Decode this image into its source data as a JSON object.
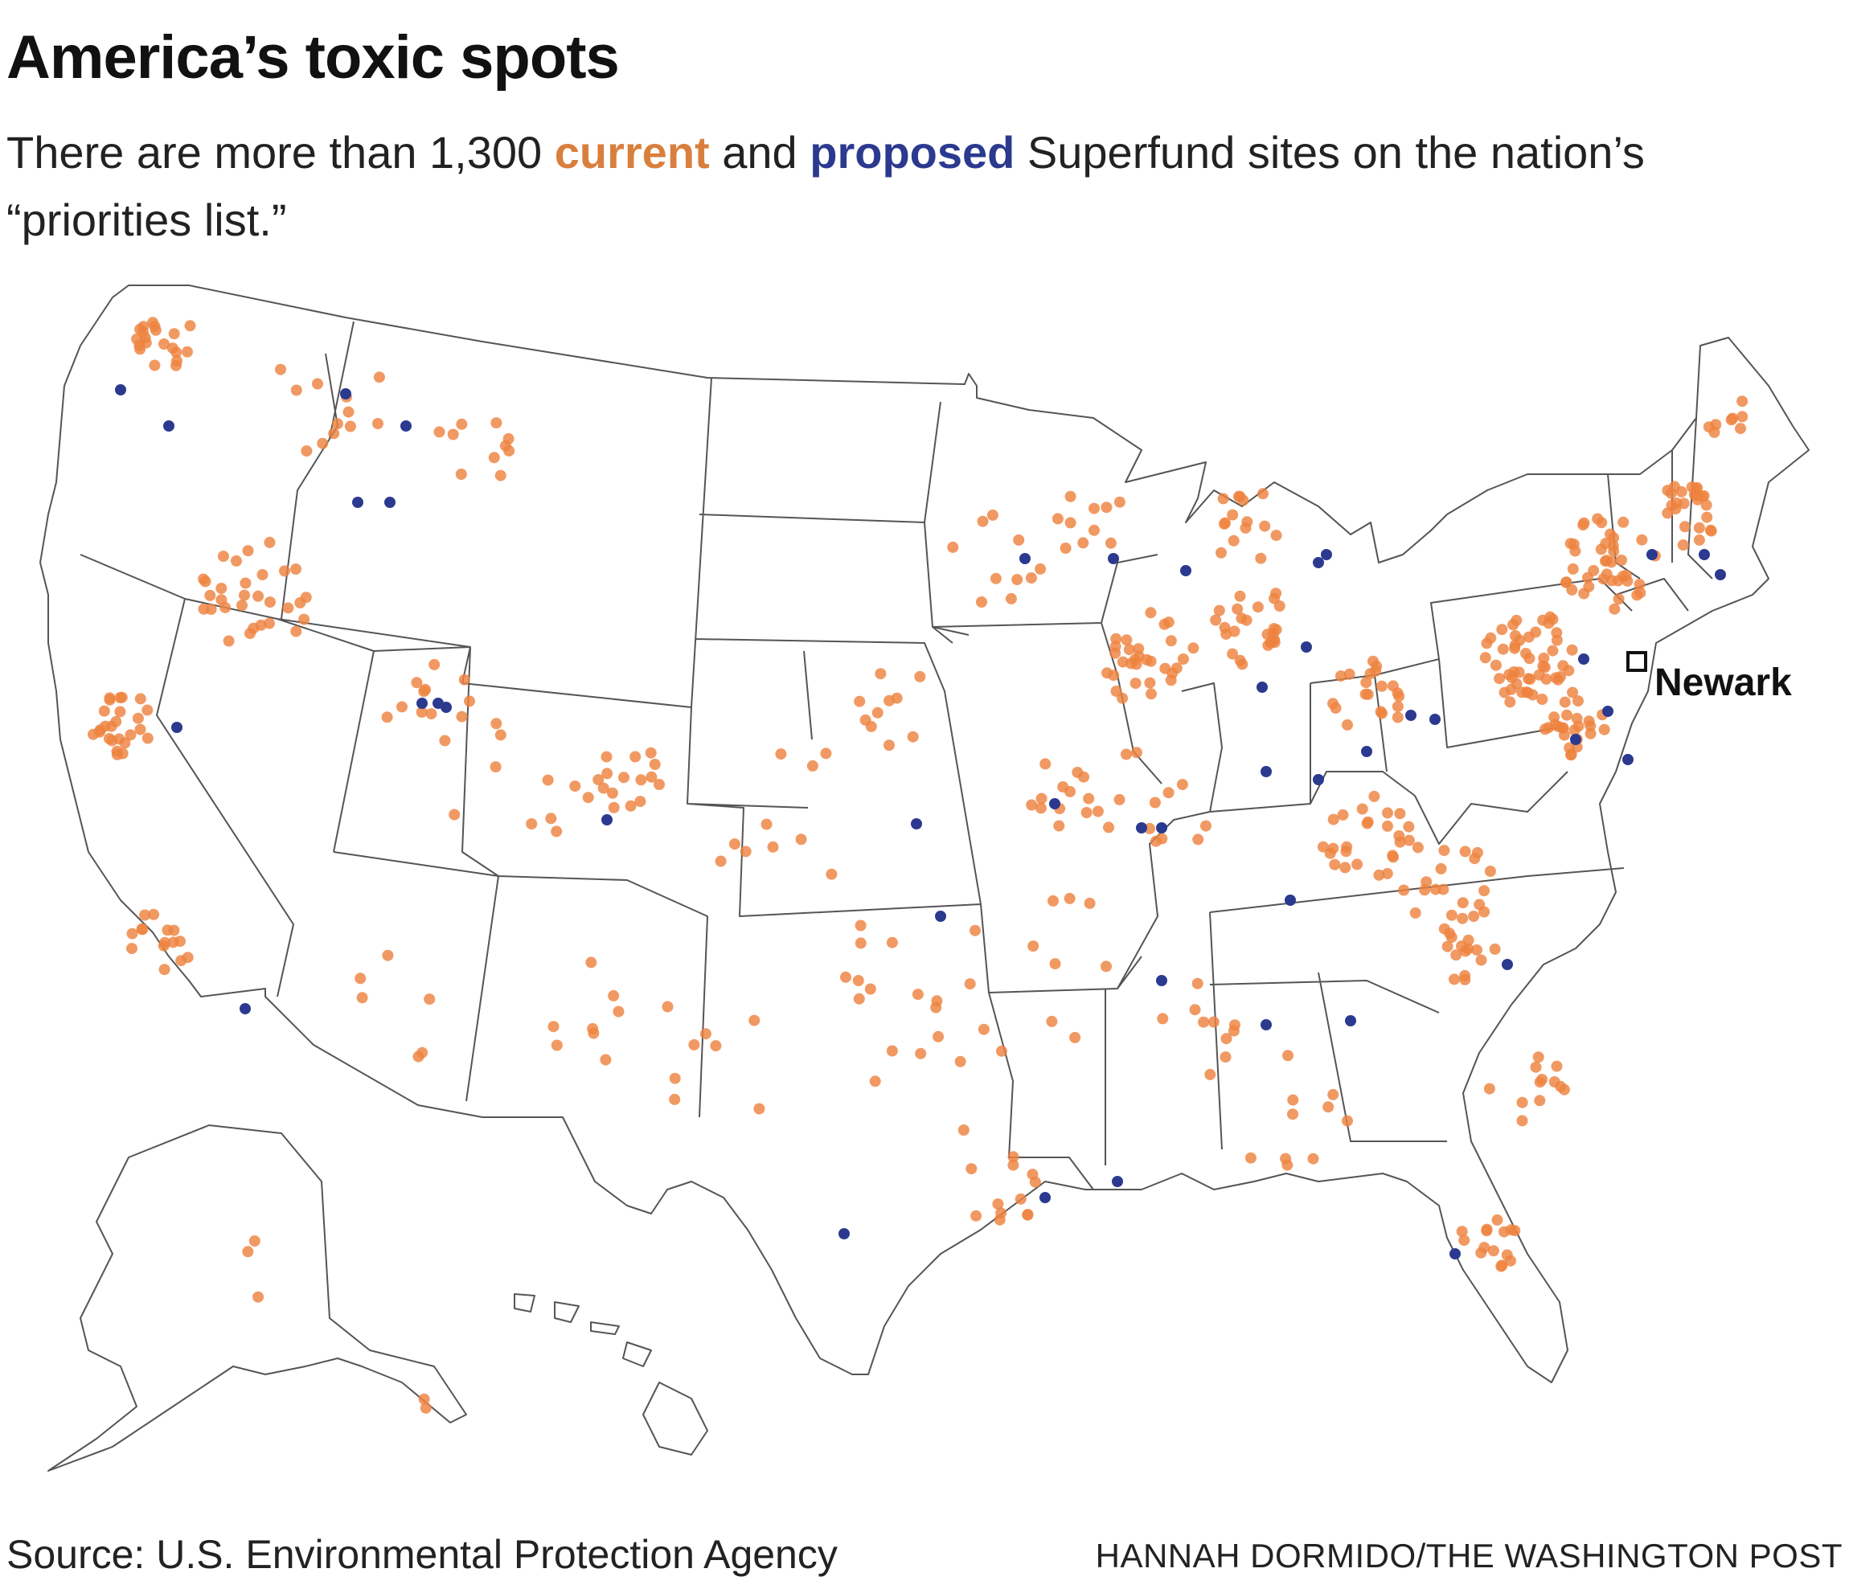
{
  "header": {
    "title": "America’s toxic spots",
    "subtitle_before": "There are more than 1,300 ",
    "subtitle_current": "current",
    "subtitle_middle": " and ",
    "subtitle_proposed": "proposed",
    "subtitle_after": " Superfund sites on the nation’s “priorities list.”"
  },
  "legend": {
    "current_color": "#ee8240",
    "proposed_color": "#2b3a8f"
  },
  "map": {
    "highlight_label": "Newark",
    "regions": [
      "contiguous-us",
      "alaska",
      "hawaii"
    ],
    "current_site_color": "#ee8240",
    "proposed_site_color": "#2b3a8f"
  },
  "footer": {
    "source": "Source: U.S. Environmental Protection Agency",
    "credit": "HANNAH DORMIDO/THE WASHINGTON POST"
  }
}
